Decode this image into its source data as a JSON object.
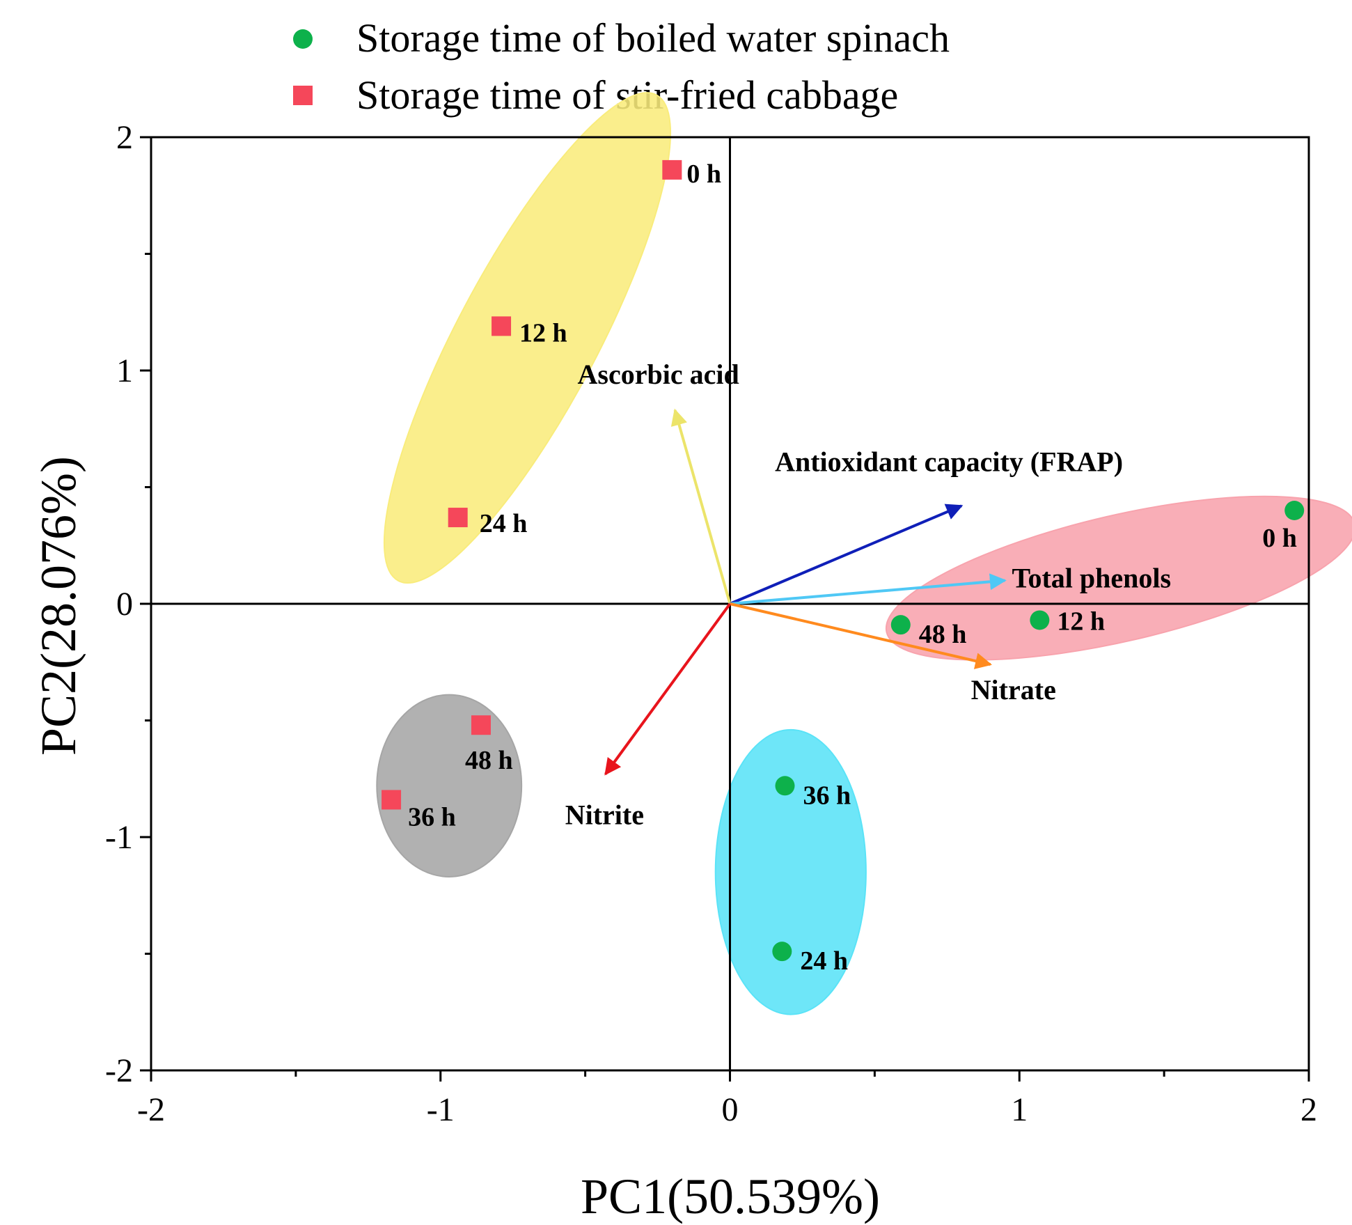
{
  "chart_data": {
    "type": "scatter",
    "xlabel": "PC1(50.539%)",
    "ylabel": "PC2(28.076%)",
    "xlim": [
      -2,
      2
    ],
    "ylim": [
      -2,
      2
    ],
    "xticks": [
      "-2",
      "-1",
      "0",
      "1",
      "2"
    ],
    "yticks": [
      "-2",
      "-1",
      "0",
      "1",
      "2"
    ],
    "tick_values": [
      -2,
      -1,
      0,
      1,
      2
    ],
    "minor_tick_values": [
      -1.5,
      -0.5,
      0.5,
      1.5
    ],
    "legend": [
      {
        "label": "Storage time of boiled water spinach",
        "marker": "circle",
        "color": "#0db14b"
      },
      {
        "label": "Storage time of stir-fried cabbage",
        "marker": "square",
        "color": "#f5475a"
      }
    ],
    "series": [
      {
        "name": "Storage time of boiled water spinach",
        "marker": "circle",
        "color": "#0db14b",
        "points": [
          {
            "label": "0 h",
            "x": 1.95,
            "y": 0.4
          },
          {
            "label": "12 h",
            "x": 1.07,
            "y": -0.07
          },
          {
            "label": "24 h",
            "x": 0.18,
            "y": -1.49
          },
          {
            "label": "36 h",
            "x": 0.19,
            "y": -0.78
          },
          {
            "label": "48 h",
            "x": 0.59,
            "y": -0.09
          }
        ]
      },
      {
        "name": "Storage time of stir-fried cabbage",
        "marker": "square",
        "color": "#f5475a",
        "points": [
          {
            "label": "0 h",
            "x": -0.2,
            "y": 1.86
          },
          {
            "label": "12 h",
            "x": -0.79,
            "y": 1.19
          },
          {
            "label": "24 h",
            "x": -0.94,
            "y": 0.37
          },
          {
            "label": "36 h",
            "x": -1.17,
            "y": -0.84
          },
          {
            "label": "48 h",
            "x": -0.86,
            "y": -0.52
          }
        ]
      }
    ],
    "loadings": [
      {
        "name": "Ascorbic acid",
        "x": -0.19,
        "y": 0.83,
        "color": "#ece46a"
      },
      {
        "name": "Antioxidant capacity (FRAP)",
        "x": 0.8,
        "y": 0.42,
        "color": "#0f1fb8"
      },
      {
        "name": "Total phenols",
        "x": 0.95,
        "y": 0.1,
        "color": "#4fc8f5"
      },
      {
        "name": "Nitrate",
        "x": 0.9,
        "y": -0.26,
        "color": "#ff8a1e"
      },
      {
        "name": "Nitrite",
        "x": -0.43,
        "y": -0.73,
        "color": "#e8141c"
      }
    ],
    "clusters": [
      {
        "name": "cabbage 0-24 h",
        "cx": -0.7,
        "cy": 1.14,
        "rx": 0.95,
        "ry": 0.3,
        "angle_deg": 62,
        "color": "#f9ec7c"
      },
      {
        "name": "spinach 0-48 h",
        "cx": 1.35,
        "cy": 0.11,
        "rx": 0.83,
        "ry": 0.27,
        "angle_deg": 13,
        "color": "#f8a3ad"
      },
      {
        "name": "cabbage 36-48 h",
        "cx": -0.97,
        "cy": -0.78,
        "rx": 0.25,
        "ry": 0.39,
        "angle_deg": 0,
        "color": "#a6a6a6"
      },
      {
        "name": "spinach 24-36 h",
        "cx": 0.21,
        "cy": -1.15,
        "rx": 0.26,
        "ry": 0.61,
        "angle_deg": 0,
        "color": "#5ae3f7"
      }
    ]
  }
}
